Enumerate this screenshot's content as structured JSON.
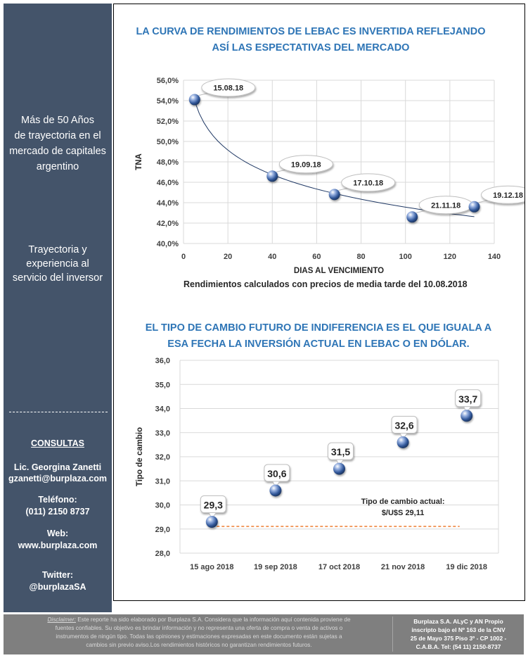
{
  "sidebar": {
    "tagline1": [
      "Más de 50 Años",
      "de trayectoria en el",
      "mercado de capitales",
      "argentino"
    ],
    "tagline2": [
      "Trayectoria y",
      "experiencia al",
      "servicio del inversor"
    ],
    "consultas_heading": "CONSULTAS",
    "contact_name": "Lic. Georgina Zanetti",
    "contact_email": "gzanetti@burplaza.com",
    "phone_label": "Teléfono:",
    "phone": "(011) 2150 8737",
    "web_label": "Web:",
    "web": "www.burplaza.com",
    "twitter_label": "Twitter:",
    "twitter": "@burplazaSA"
  },
  "chart_data": [
    {
      "type": "scatter",
      "title": "LA CURVA DE RENDIMIENTOS DE LEBAC ES INVERTIDA REFLEJANDO ASÍ LAS ESPECTATIVAS DEL MERCADO",
      "xlabel": "DIAS AL VENCIMIENTO",
      "ylabel": "TNA",
      "note": "Rendimientos calculados con precios de media tarde del 10.08.2018",
      "xlim": [
        0,
        140
      ],
      "ylim": [
        40,
        56
      ],
      "x_ticks": [
        0,
        20,
        40,
        60,
        80,
        100,
        120,
        140
      ],
      "y_ticks": [
        40,
        42,
        44,
        46,
        48,
        50,
        52,
        54,
        56
      ],
      "grid": true,
      "trendline": "logarithmic",
      "points": [
        {
          "label": "15.08.18",
          "x": 5,
          "y": 54.1
        },
        {
          "label": "19.09.18",
          "x": 40,
          "y": 46.6
        },
        {
          "label": "17.10.18",
          "x": 68,
          "y": 44.8
        },
        {
          "label": "21.11.18",
          "x": 103,
          "y": 42.6
        },
        {
          "label": "19.12.18",
          "x": 131,
          "y": 43.6
        }
      ],
      "colors": {
        "title": "#2e75b6",
        "marker": "#2f5597",
        "trend": "#1f3864",
        "grid": "#d9d9d9"
      }
    },
    {
      "type": "scatter",
      "title": "EL TIPO DE CAMBIO FUTURO DE INDIFERENCIA ES EL QUE IGUALA A ESA FECHA LA INVERSIÓN ACTUAL EN LEBAC O EN DÓLAR.",
      "xlabel": "",
      "ylabel": "Tipo de cambio",
      "categories": [
        "15 ago 2018",
        "19 sep 2018",
        "17 oct 2018",
        "21 nov 2018",
        "19 dic 2018"
      ],
      "values": [
        29.3,
        30.6,
        31.5,
        32.6,
        33.7
      ],
      "data_labels": [
        "29,3",
        "30,6",
        "31,5",
        "32,6",
        "33,7"
      ],
      "ylim": [
        28,
        36
      ],
      "y_ticks": [
        "28,0",
        "29,0",
        "30,0",
        "31,0",
        "32,0",
        "33,0",
        "34,0",
        "35,0",
        "36,0"
      ],
      "grid": true,
      "reference_line": {
        "value": 29.11,
        "label_line1": "Tipo de cambio actual:",
        "label_line2": "$/U$S 29,11",
        "color": "#ed7d31"
      },
      "colors": {
        "title": "#2e75b6",
        "marker": "#2f5597",
        "grid": "#d9d9d9"
      }
    }
  ],
  "footer": {
    "disclaimer_label": "Disclaimer:",
    "disclaimer_lines": [
      "Este reporte ha sido elaborado por Burplaza S.A. Considera que la información aquí contenida proviene de",
      "fuentes confiables. Su objetivo es brindar información y no representa una oferta de compra o venta de activos o",
      "instrumentos de ningún tipo. Todas las opiniones y estimaciones expresadas en este documento están sujetas a",
      "cambios sin previo aviso.Los rendimientos históricos no garantizan rendimientos futuros."
    ],
    "company_lines": [
      "Burplaza S.A. ALyC y AN Propio",
      "inscripto bajo el Nº 163 de la CNV",
      "25 de Mayo 375 Piso 3º - CP 1002 -",
      "C.A.B.A. Tel: (54 11) 2150-8737"
    ]
  }
}
